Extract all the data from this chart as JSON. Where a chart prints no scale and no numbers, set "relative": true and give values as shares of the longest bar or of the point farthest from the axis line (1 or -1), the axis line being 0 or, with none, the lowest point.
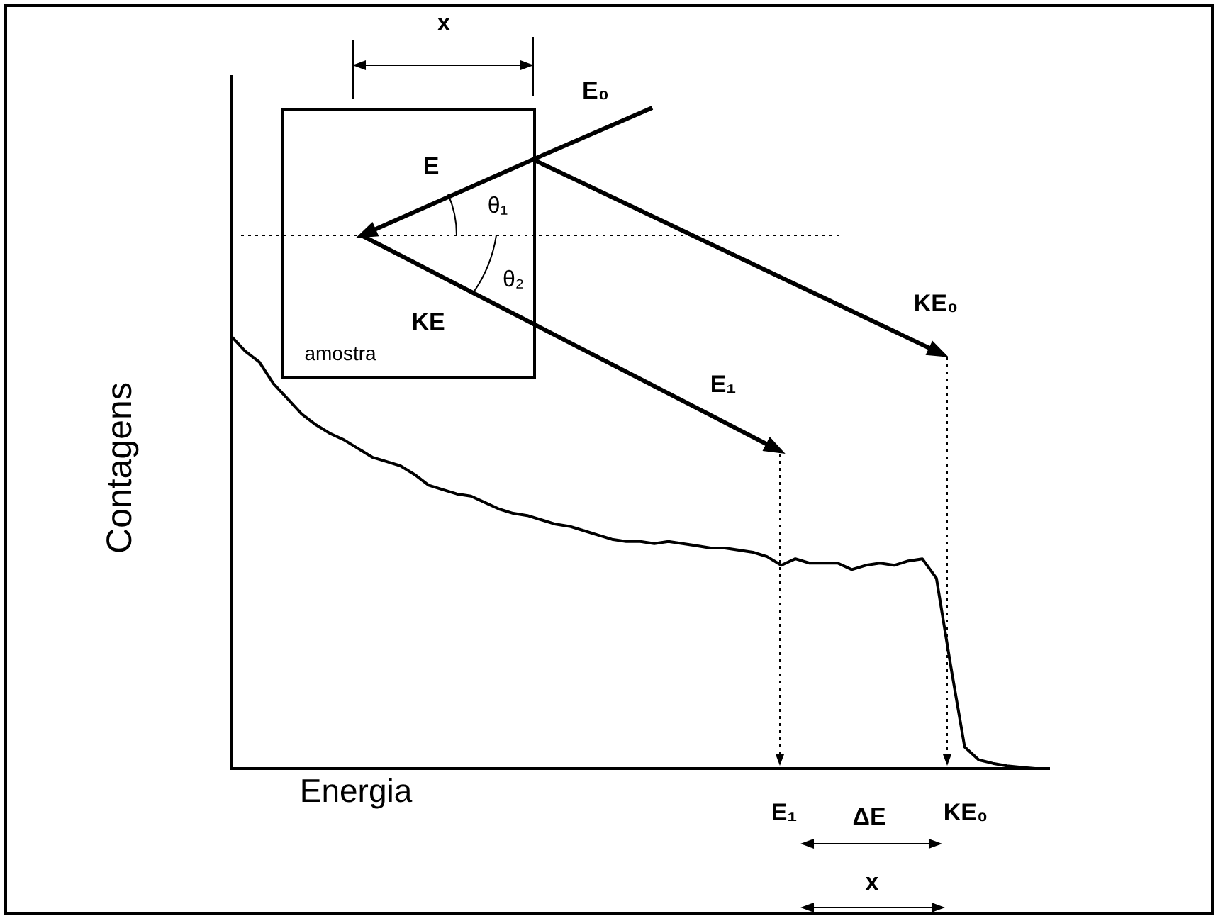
{
  "chart_data": {
    "type": "line",
    "relative": true,
    "xlabel": "Energia",
    "ylabel": "Contagens",
    "categories": [
      null,
      null,
      null,
      null,
      null,
      null,
      null,
      null,
      null,
      null,
      null,
      null,
      null,
      null,
      null,
      null,
      null,
      null,
      null,
      null,
      null,
      null,
      null,
      null,
      null,
      null,
      null,
      null,
      null,
      null,
      null,
      null,
      null,
      null,
      null,
      null,
      null,
      null,
      null,
      null,
      null,
      null,
      null,
      null,
      null,
      null,
      null,
      null,
      null,
      null,
      null,
      null,
      null,
      null,
      null,
      null,
      null,
      null,
      null
    ],
    "series": [
      {
        "color": "#000000",
        "values": [
          1.0,
          0.965,
          0.94,
          0.89,
          0.855,
          0.82,
          0.795,
          0.775,
          0.76,
          0.74,
          0.72,
          0.71,
          0.7,
          0.68,
          0.655,
          0.645,
          0.635,
          0.63,
          0.615,
          0.6,
          0.59,
          0.585,
          0.575,
          0.565,
          0.56,
          0.55,
          0.54,
          0.53,
          0.525,
          0.525,
          0.52,
          0.525,
          0.52,
          0.515,
          0.51,
          0.51,
          0.505,
          0.5,
          0.49,
          0.47,
          0.485,
          0.475,
          0.475,
          0.475,
          0.46,
          0.47,
          0.475,
          0.47,
          0.48,
          0.485,
          0.44,
          0.24,
          0.05,
          0.02,
          0.012,
          0.006,
          0.003,
          0,
          0
        ]
      }
    ],
    "annotations": [
      "x",
      "E₀",
      "E",
      "θ₁",
      "θ₂",
      "KE",
      "amostra",
      "E₁",
      "KE₀",
      "E₁",
      "ΔE",
      "KE₀",
      "x"
    ]
  }
}
